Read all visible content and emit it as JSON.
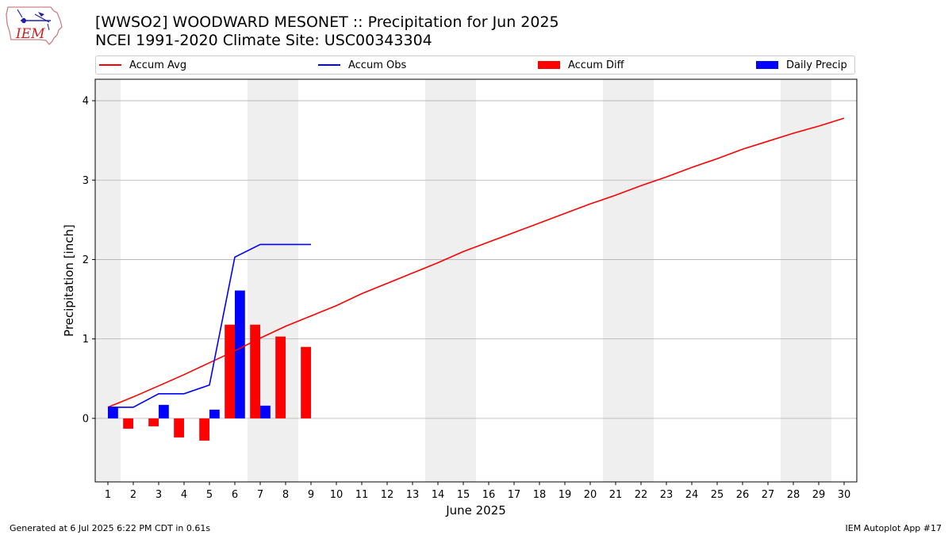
{
  "header": {
    "logo_text": "IEM",
    "title_line1": "[WWSO2] WOODWARD MESONET :: Precipitation for Jun 2025",
    "title_line2": "NCEI 1991-2020 Climate Site: USC00343304"
  },
  "footer": {
    "left": "Generated at 6 Jul 2025 6:22 PM CDT in 0.61s",
    "right": "IEM Autoplot App #17"
  },
  "colors": {
    "accum_avg": "#ff0000",
    "accum_obs": "#0000ff",
    "accum_diff": "#ff0000",
    "daily_precip": "#0000ff",
    "weekend_shade": "#efefef",
    "grid": "#b0b0b0"
  },
  "chart_data": {
    "type": "bar",
    "xlabel": "June 2025",
    "ylabel": "Precipitation [inch]",
    "xlim": [
      0.5,
      30.5
    ],
    "ylim": [
      -0.8,
      4.27
    ],
    "x_ticks": [
      1,
      2,
      3,
      4,
      5,
      6,
      7,
      8,
      9,
      10,
      11,
      12,
      13,
      14,
      15,
      16,
      17,
      18,
      19,
      20,
      21,
      22,
      23,
      24,
      25,
      26,
      27,
      28,
      29,
      30
    ],
    "y_ticks": [
      0,
      1,
      2,
      3,
      4
    ],
    "grid": "y",
    "legend_position": "top",
    "weekend_days": [
      1,
      7,
      8,
      14,
      15,
      21,
      22,
      28,
      29
    ],
    "series": [
      {
        "name": "Accum Avg",
        "type": "line",
        "x": [
          1,
          2,
          3,
          4,
          5,
          6,
          7,
          8,
          9,
          10,
          11,
          12,
          13,
          14,
          15,
          16,
          17,
          18,
          19,
          20,
          21,
          22,
          23,
          24,
          25,
          26,
          27,
          28,
          29,
          30
        ],
        "values": [
          0.14,
          0.27,
          0.41,
          0.55,
          0.7,
          0.85,
          1.01,
          1.16,
          1.29,
          1.42,
          1.57,
          1.7,
          1.83,
          1.96,
          2.1,
          2.22,
          2.34,
          2.46,
          2.58,
          2.7,
          2.81,
          2.93,
          3.04,
          3.16,
          3.27,
          3.39,
          3.49,
          3.59,
          3.68,
          3.78
        ]
      },
      {
        "name": "Accum Obs",
        "type": "line",
        "x": [
          1,
          2,
          3,
          4,
          5,
          6,
          7,
          8,
          9
        ],
        "values": [
          0.14,
          0.14,
          0.31,
          0.31,
          0.42,
          2.03,
          2.19,
          2.19,
          2.19
        ]
      },
      {
        "name": "Accum Diff",
        "type": "bar",
        "x": [
          2,
          3,
          4,
          5,
          6,
          7,
          8,
          9
        ],
        "values": [
          -0.13,
          -0.1,
          -0.24,
          -0.28,
          1.18,
          1.18,
          1.03,
          0.9
        ]
      },
      {
        "name": "Daily Precip",
        "type": "bar",
        "x": [
          1,
          3,
          5,
          6,
          7
        ],
        "values": [
          0.14,
          0.17,
          0.11,
          1.61,
          0.16
        ]
      }
    ]
  }
}
